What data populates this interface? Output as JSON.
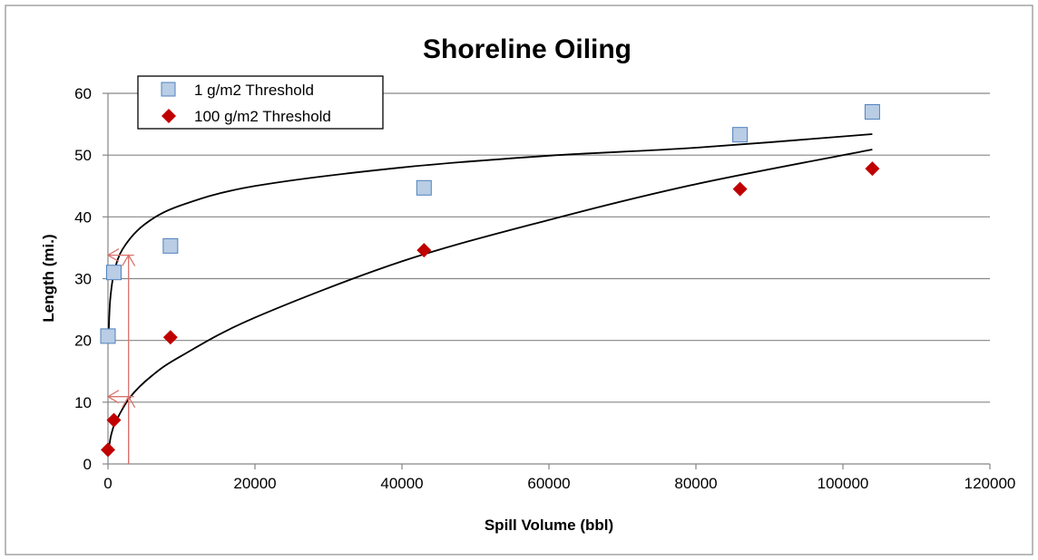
{
  "chart_data": {
    "type": "scatter",
    "title": "Shoreline Oiling",
    "xlabel": "Spill Volume (bbl)",
    "ylabel": "Length (mi.)",
    "xlim": [
      0,
      120000
    ],
    "ylim": [
      0,
      60
    ],
    "x_ticks": [
      0,
      20000,
      40000,
      60000,
      80000,
      100000,
      120000
    ],
    "y_ticks": [
      0,
      10,
      20,
      30,
      40,
      50,
      60
    ],
    "grid": "horizontal",
    "legend_position": "top-left",
    "series": [
      {
        "name": "1 g/m2 Threshold",
        "marker": "square",
        "color": "#b9cde5",
        "edge_color": "#4f81bd",
        "x": [
          0,
          800,
          8500,
          43000,
          86000,
          104000
        ],
        "y": [
          20.7,
          31,
          35.3,
          44.7,
          53.3,
          57
        ]
      },
      {
        "name": "100 g/m2 Threshold",
        "marker": "diamond",
        "color": "#c00000",
        "edge_color": "#c00000",
        "x": [
          0,
          800,
          8500,
          43000,
          86000,
          104000
        ],
        "y": [
          2.3,
          7.1,
          20.5,
          34.6,
          44.5,
          47.8
        ]
      }
    ],
    "trendlines": [
      {
        "series": "1 g/m2 Threshold",
        "type": "logarithmic",
        "color": "#000000",
        "x": [
          100,
          300,
          800,
          2000,
          5000,
          10000,
          20000,
          40000,
          60000,
          80000,
          104000
        ],
        "y": [
          21.5,
          26.5,
          30.8,
          34.8,
          38.8,
          41.9,
          45.0,
          48.0,
          49.9,
          51.2,
          53.4
        ]
      },
      {
        "series": "100 g/m2 Threshold",
        "type": "power",
        "color": "#000000",
        "x": [
          100,
          400,
          1000,
          3000,
          6000,
          10000,
          20000,
          40000,
          60000,
          80000,
          104000
        ],
        "y": [
          2.2,
          4.5,
          6.7,
          10.8,
          14.3,
          17.5,
          23.7,
          32.8,
          39.5,
          45.3,
          50.9
        ]
      }
    ],
    "annotations": [
      {
        "type": "guide",
        "x": 2800,
        "y": 33.8,
        "color": "#d9736c"
      },
      {
        "type": "guide",
        "x": 2800,
        "y": 10.9,
        "color": "#d9736c"
      }
    ]
  }
}
